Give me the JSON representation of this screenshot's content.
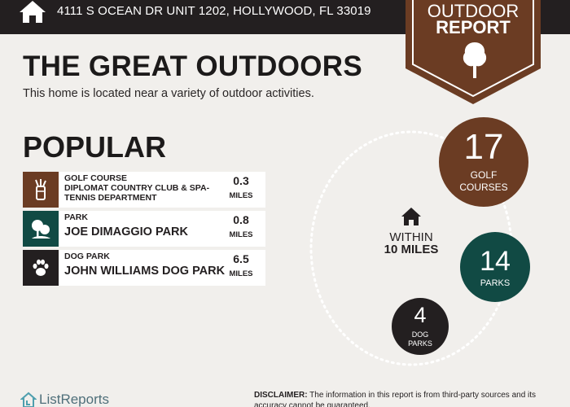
{
  "header": {
    "address": "4111 S OCEAN DR UNIT 1202, HOLLYWOOD, FL 33019",
    "home_icon": "house-icon"
  },
  "badge": {
    "line1": "OUTDOOR",
    "line2": "REPORT",
    "icon": "tree-icon",
    "color": "#6b3c23"
  },
  "title": "THE GREAT OUTDOORS",
  "subtitle": "This home is located near a variety of outdoor activities.",
  "popular": {
    "heading": "POPULAR",
    "items": [
      {
        "category": "GOLF COURSE",
        "name": "DIPLOMAT COUNTRY CLUB & SPA-TENNIS DEPARTMENT",
        "distance": "0.3",
        "unit": "MILES",
        "icon": "golf-bag-icon",
        "color": "#6b3c23"
      },
      {
        "category": "PARK",
        "name": "JOE DIMAGGIO PARK",
        "distance": "0.8",
        "unit": "MILES",
        "icon": "tree-icon",
        "color": "#114a44"
      },
      {
        "category": "DOG PARK",
        "name": "JOHN WILLIAMS DOG PARK",
        "distance": "6.5",
        "unit": "MILES",
        "icon": "paw-icon",
        "color": "#231f20"
      }
    ]
  },
  "summary": {
    "within_line1": "WITHIN",
    "within_line2": "10 MILES",
    "icon": "house-icon",
    "stats": [
      {
        "value": "17",
        "label_line1": "GOLF",
        "label_line2": "COURSES",
        "color": "#6b3c23"
      },
      {
        "value": "14",
        "label_line1": "PARKS",
        "label_line2": "",
        "color": "#114a44"
      },
      {
        "value": "4",
        "label_line1": "DOG",
        "label_line2": "PARKS",
        "color": "#231f20"
      }
    ]
  },
  "footer": {
    "brand": "ListReports",
    "brand_icon": "listreports-logo-icon",
    "disclaimer_label": "DISCLAIMER:",
    "disclaimer_text": " The information in this report is from third-party sources and its accuracy cannot be guaranteed."
  }
}
